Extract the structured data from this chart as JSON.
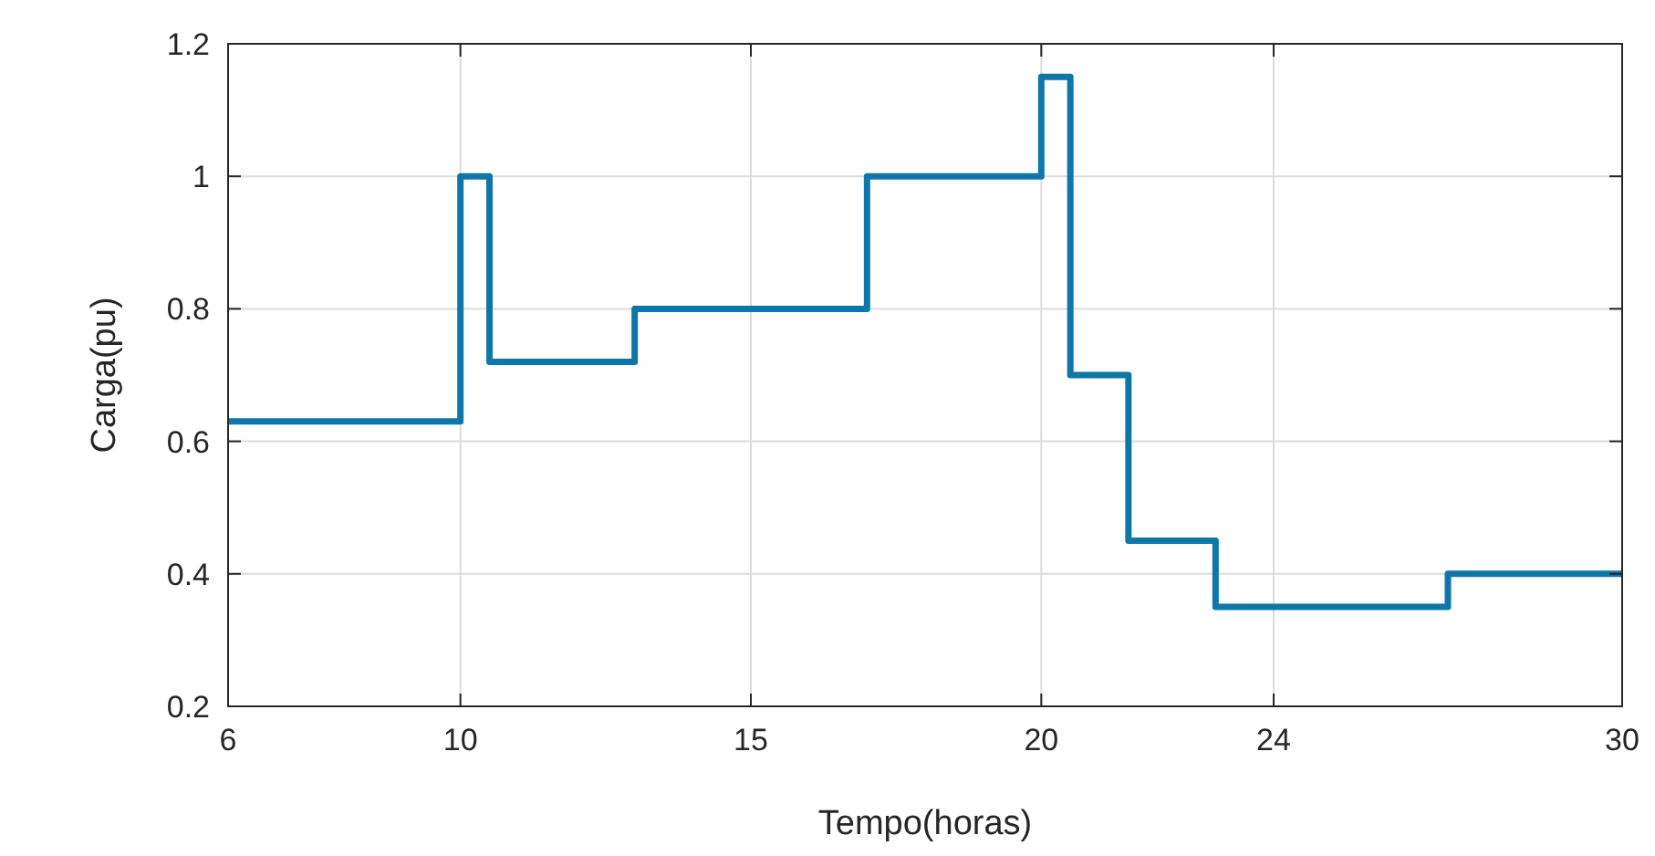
{
  "chart_data": {
    "type": "step",
    "xlabel": "Tempo(horas)",
    "ylabel": "Carga(pu)",
    "x": [
      6,
      10,
      10.5,
      13,
      17,
      20,
      20.5,
      21.5,
      23,
      27,
      30
    ],
    "series": [
      {
        "color": "#0e76a8",
        "values": [
          0.63,
          1,
          0.72,
          0.8,
          1,
          1.15,
          0.7,
          0.45,
          0.35,
          0.4,
          0.4
        ]
      }
    ],
    "xlim": [
      6,
      30
    ],
    "xticks": [
      6,
      10,
      15,
      20,
      24,
      30
    ],
    "ylim": [
      0.2,
      1.2
    ],
    "yticks": [
      0.2,
      0.4,
      0.6,
      0.8,
      1,
      1.2
    ],
    "grid": true
  }
}
